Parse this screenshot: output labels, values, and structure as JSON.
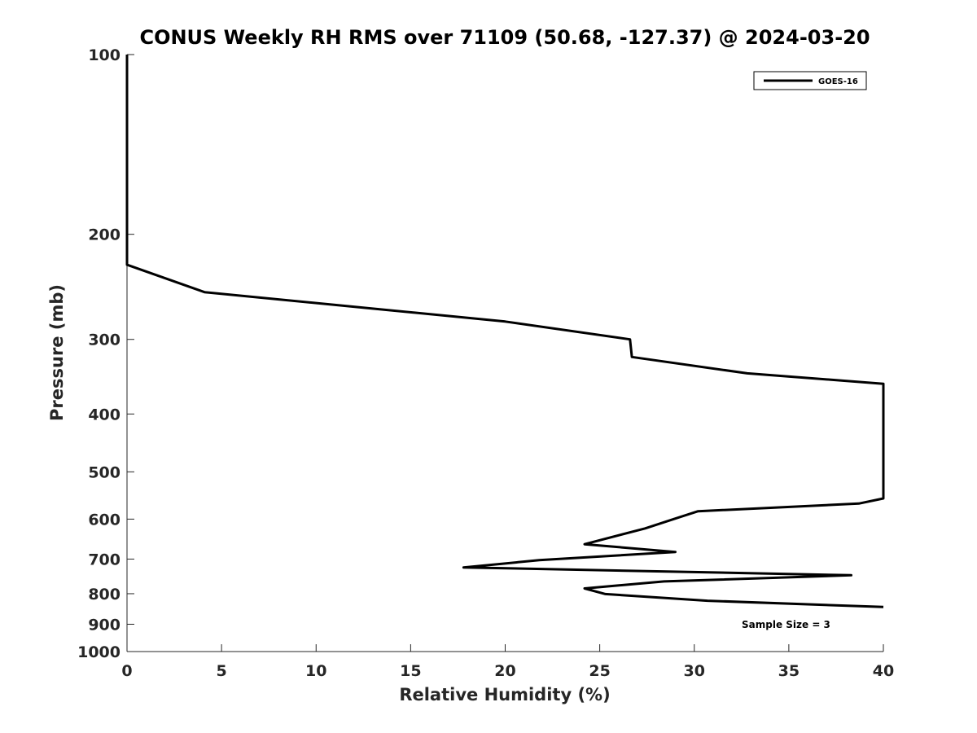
{
  "chart_data": {
    "type": "line",
    "title": "CONUS Weekly RH RMS over 71109 (50.68, -127.37) @ 2024-03-20",
    "xlabel": "Relative Humidity (%)",
    "ylabel": "Pressure (mb)",
    "xlim": [
      0,
      40
    ],
    "ylim": [
      100,
      1000
    ],
    "y_scale": "log",
    "y_reversed": true,
    "x_ticks": [
      0,
      5,
      10,
      15,
      20,
      25,
      30,
      35,
      40
    ],
    "y_ticks": [
      100,
      200,
      300,
      400,
      500,
      600,
      700,
      800,
      900,
      1000
    ],
    "grid": false,
    "legend_placement": "top-right",
    "annotation": "Sample Size = 3",
    "series": [
      {
        "name": "GOES-16",
        "color": "#000000",
        "points": [
          [
            0,
            100
          ],
          [
            0,
            150
          ],
          [
            0,
            200
          ],
          [
            0,
            225
          ],
          [
            4.1,
            250
          ],
          [
            20,
            280
          ],
          [
            26.6,
            300
          ],
          [
            26.7,
            321
          ],
          [
            32.8,
            342
          ],
          [
            40,
            356
          ],
          [
            40,
            554
          ],
          [
            38.7,
            565
          ],
          [
            30.2,
            582
          ],
          [
            28.9,
            600
          ],
          [
            27.4,
            622
          ],
          [
            24.2,
            661
          ],
          [
            29.0,
            681
          ],
          [
            21.8,
            703
          ],
          [
            17.8,
            723
          ],
          [
            38.3,
            745
          ],
          [
            28.4,
            763
          ],
          [
            24.2,
            784
          ],
          [
            25.3,
            801
          ],
          [
            30.7,
            822
          ],
          [
            40,
            842
          ]
        ]
      }
    ]
  }
}
